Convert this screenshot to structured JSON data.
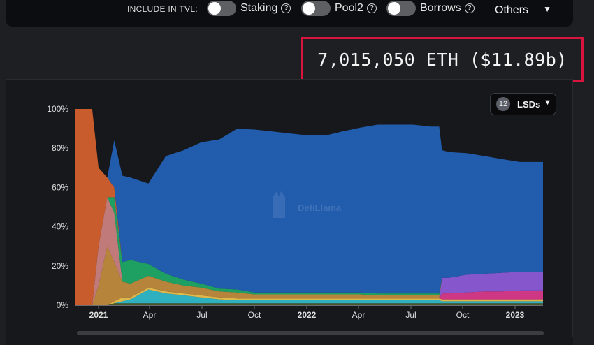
{
  "controls": {
    "include_in_tvl_label": "INCLUDE IN TVL:",
    "toggles": [
      {
        "label": "Staking",
        "on": false
      },
      {
        "label": "Pool2",
        "on": false
      },
      {
        "label": "Borrows",
        "on": false
      }
    ],
    "others_label": "Others"
  },
  "summary": {
    "total_value": "7,015,050 ETH ($11.89b)"
  },
  "lsd_selector": {
    "count": "12",
    "label": "LSDs"
  },
  "watermark": "DefiLlama",
  "colors": {
    "background": "#1e1f22",
    "panel": "#17181b",
    "highlight_border": "#d9143d"
  },
  "chart_data": {
    "type": "area",
    "stacked": true,
    "normalized": true,
    "ylim": [
      0,
      100
    ],
    "y_ticks": [
      "0%",
      "20%",
      "40%",
      "60%",
      "80%",
      "100%"
    ],
    "x_ticks": [
      "2021",
      "Apr",
      "Jul",
      "Oct",
      "2022",
      "Apr",
      "Jul",
      "Oct",
      "2023"
    ],
    "x_range": [
      "2020-11-25",
      "2023-02-10"
    ],
    "grid": false,
    "x": [
      "2020-11-25",
      "2020-12-15",
      "2020-12-25",
      "2021-01-05",
      "2021-01-20",
      "2021-02-01",
      "2021-02-15",
      "2021-03-01",
      "2021-04-01",
      "2021-05-01",
      "2021-06-01",
      "2021-07-01",
      "2021-08-01",
      "2021-09-01",
      "2021-10-01",
      "2021-11-01",
      "2021-12-01",
      "2022-01-01",
      "2022-02-01",
      "2022-03-01",
      "2022-04-01",
      "2022-05-01",
      "2022-06-01",
      "2022-07-01",
      "2022-08-01",
      "2022-08-15",
      "2022-08-20",
      "2022-09-01",
      "2022-10-01",
      "2022-11-01",
      "2022-12-01",
      "2023-01-01",
      "2023-02-10"
    ],
    "series": [
      {
        "color": "#4b5a2a",
        "values": [
          0,
          0,
          0,
          0,
          0,
          1,
          1,
          1,
          1,
          1,
          1,
          1,
          1,
          1,
          1,
          1,
          1,
          1,
          1,
          1,
          1,
          1,
          1,
          1,
          1,
          1,
          1,
          1,
          1,
          1,
          1,
          1,
          1
        ]
      },
      {
        "color": "#2fb8c9",
        "values": [
          0,
          0,
          0,
          0,
          0,
          0,
          1,
          2,
          7,
          5,
          4,
          3,
          2,
          1.5,
          1.5,
          1.5,
          1.5,
          1.5,
          1.5,
          1.5,
          1.5,
          1.5,
          1.5,
          1.5,
          1.5,
          1.5,
          1,
          1,
          1,
          1,
          1,
          1,
          1
        ]
      },
      {
        "color": "#e9c14e",
        "values": [
          0,
          0,
          0,
          0,
          0,
          1,
          2,
          1,
          1,
          1,
          1,
          1,
          1,
          1,
          1,
          1,
          1,
          1,
          1,
          1,
          1,
          1,
          1,
          1,
          1,
          1,
          1,
          1,
          1,
          1,
          1,
          1,
          1
        ]
      },
      {
        "color": "#d8398a",
        "values": [
          0,
          0,
          0,
          0,
          0,
          0,
          0,
          0,
          0,
          0,
          0,
          0,
          0,
          0,
          0,
          0,
          0,
          0,
          0,
          0,
          0,
          0,
          0,
          0,
          0,
          0,
          3,
          3,
          3.5,
          4,
          4,
          4.5,
          4.5
        ]
      },
      {
        "color": "#8b5ad6",
        "values": [
          0,
          0,
          0,
          0,
          0,
          0,
          0,
          0,
          0,
          0,
          0,
          0,
          0,
          0,
          0,
          0,
          0,
          0,
          0,
          0,
          0,
          0,
          0,
          0,
          0,
          0,
          8,
          8,
          9,
          9,
          9.5,
          9.5,
          9.5
        ]
      },
      {
        "color": "#c08a3e",
        "values": [
          0,
          0,
          0,
          10,
          30,
          20,
          8,
          7,
          6,
          5,
          4,
          4,
          3,
          3,
          2,
          2,
          2,
          2,
          2,
          2,
          2,
          1.5,
          1.5,
          1.5,
          1.5,
          1.5,
          0,
          0,
          0,
          0,
          0,
          0,
          0
        ]
      },
      {
        "color": "#c97f7f",
        "values": [
          0,
          0,
          0,
          20,
          25,
          25,
          0,
          0,
          0,
          0,
          0,
          0,
          0,
          0,
          0,
          0,
          0,
          0,
          0,
          0,
          0,
          0,
          0,
          0,
          0,
          0,
          0,
          0,
          0,
          0,
          0,
          0,
          0
        ]
      },
      {
        "color": "#1fa866",
        "values": [
          0,
          0,
          0,
          0,
          0,
          8,
          10,
          12,
          6,
          4,
          3,
          2,
          1.5,
          1.5,
          1,
          1,
          1,
          1,
          1,
          1,
          1,
          1,
          1,
          1,
          1,
          1,
          0,
          0,
          0,
          0,
          0,
          0,
          0
        ]
      },
      {
        "color": "#d2602d",
        "values": [
          100,
          100,
          100,
          40,
          10,
          5,
          0,
          0,
          0,
          0,
          0,
          0,
          0,
          0,
          0,
          0,
          0,
          0,
          0,
          0,
          0,
          0,
          0,
          0,
          0,
          0,
          0,
          0,
          0,
          0,
          0,
          0,
          0
        ]
      },
      {
        "color": "#2360b4",
        "values": [
          0,
          0,
          0,
          0,
          0,
          24,
          44,
          42,
          41,
          60,
          66,
          72,
          76,
          82,
          83,
          82,
          81,
          80,
          80,
          82,
          84,
          86,
          86,
          86,
          85,
          85,
          65,
          64,
          62,
          60,
          58,
          56,
          56
        ]
      }
    ]
  }
}
